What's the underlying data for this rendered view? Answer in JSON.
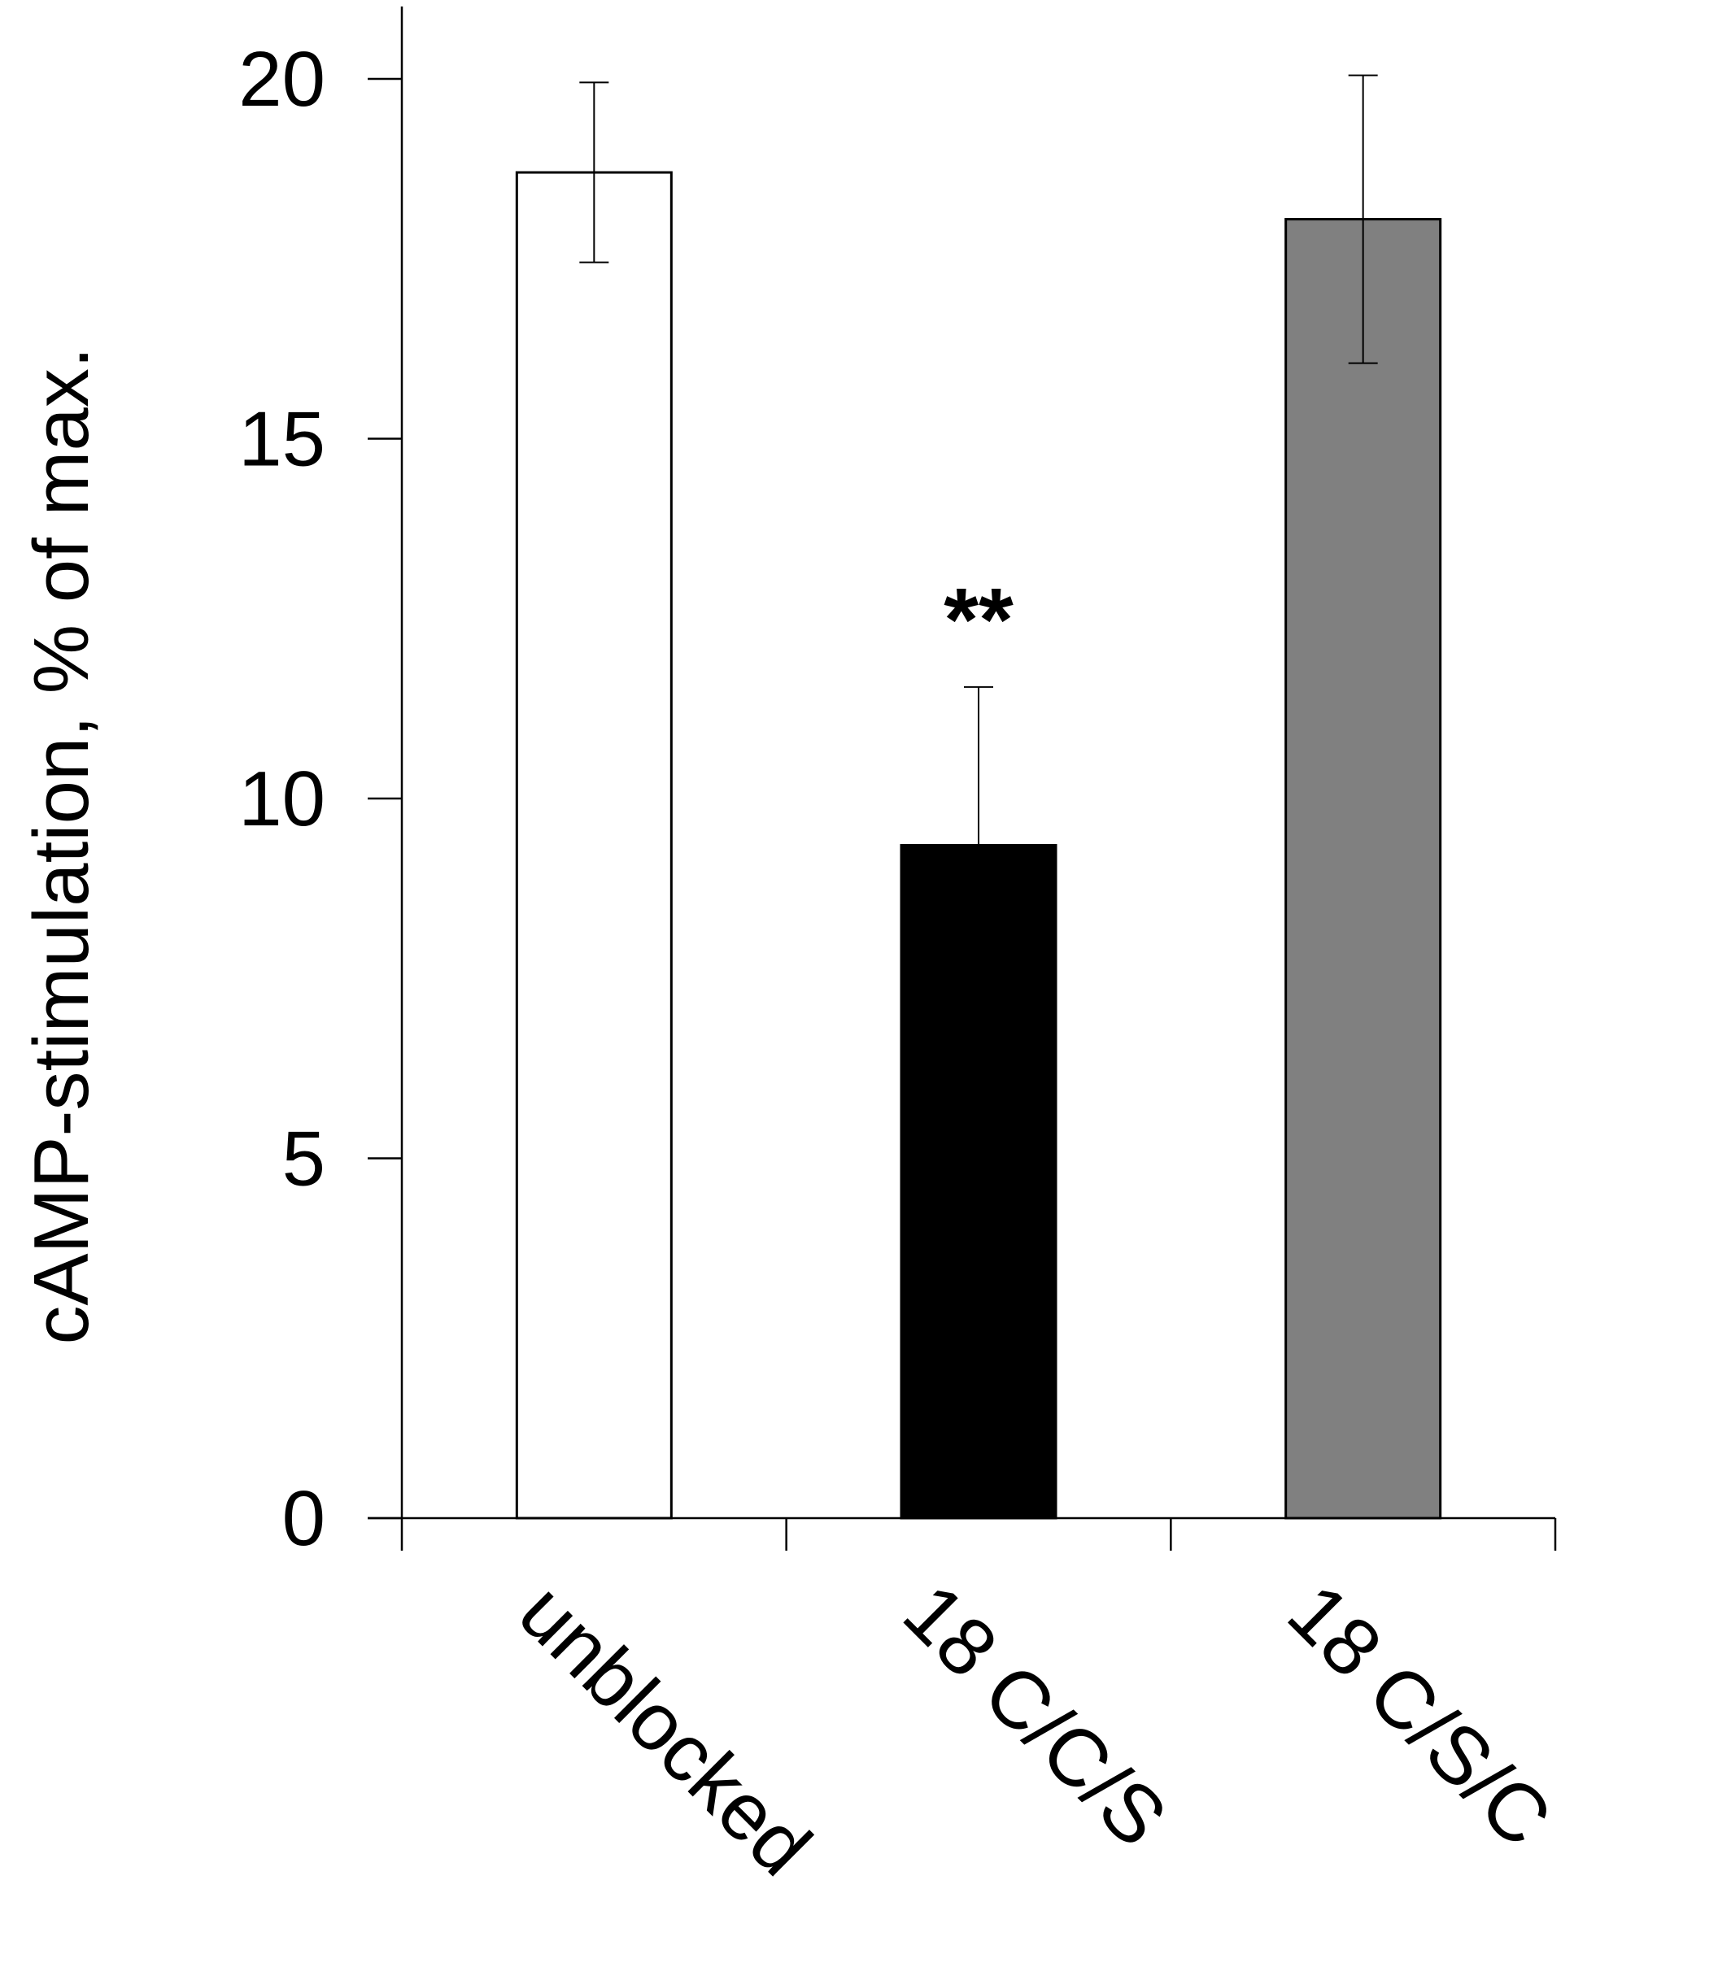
{
  "chart_data": {
    "type": "bar",
    "categories": [
      "unblocked",
      "18 C/C/S",
      "18 C/S/C"
    ],
    "values": [
      18.7,
      9.35,
      18.05
    ],
    "errors": [
      1.25,
      2.2,
      2.0
    ],
    "bar_colors": [
      "#ffffff",
      "#000000",
      "#808080"
    ],
    "bar_stroke": "#000000",
    "ylabel": "cAMP-stimulation, % of max.",
    "ylim": [
      0,
      20
    ],
    "yticks": [
      "0",
      "5",
      "10",
      "15",
      "20"
    ],
    "annotations": [
      {
        "category": "18 C/C/S",
        "text": "**"
      }
    ],
    "grid": false,
    "legend": "none"
  }
}
